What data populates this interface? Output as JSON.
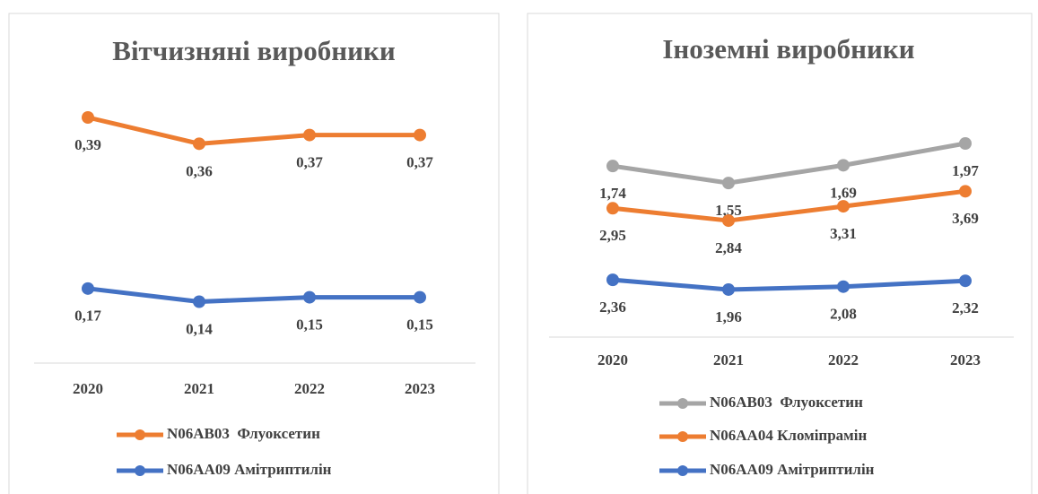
{
  "chart_data": [
    {
      "type": "line",
      "stacked": true,
      "title": "Вітчизняні виробники",
      "categories": [
        "2020",
        "2021",
        "2022",
        "2023"
      ],
      "series": [
        {
          "name": "N06AB03  Флуоксетин",
          "color": "#ed7d31",
          "values": [
            0.39,
            0.36,
            0.37,
            0.37
          ],
          "value_labels": [
            "0,39",
            "0,36",
            "0,37",
            "0,37"
          ]
        },
        {
          "name": "N06AA09 Амітриптилін",
          "color": "#4472c4",
          "values": [
            0.17,
            0.14,
            0.15,
            0.15
          ],
          "value_labels": [
            "0,17",
            "0,14",
            "0,15",
            "0,15"
          ]
        }
      ]
    },
    {
      "type": "line",
      "stacked": true,
      "title": "Іноземні виробники",
      "categories": [
        "2020",
        "2021",
        "2022",
        "2023"
      ],
      "series": [
        {
          "name": "N06AB03  Флуоксетин",
          "color": "#a5a5a5",
          "values": [
            1.74,
            1.55,
            1.69,
            1.97
          ],
          "value_labels": [
            "1,74",
            "1,55",
            "1,69",
            "1,97"
          ]
        },
        {
          "name": "N06AA04 Кломіпрамін",
          "color": "#ed7d31",
          "values": [
            2.95,
            2.84,
            3.31,
            3.69
          ],
          "value_labels": [
            "2,95",
            "2,84",
            "3,31",
            "3,69"
          ]
        },
        {
          "name": "N06AA09 Амітриптилін",
          "color": "#4472c4",
          "values": [
            2.36,
            1.96,
            2.08,
            2.32
          ],
          "value_labels": [
            "2,36",
            "1,96",
            "2,08",
            "2,32"
          ]
        }
      ]
    }
  ]
}
